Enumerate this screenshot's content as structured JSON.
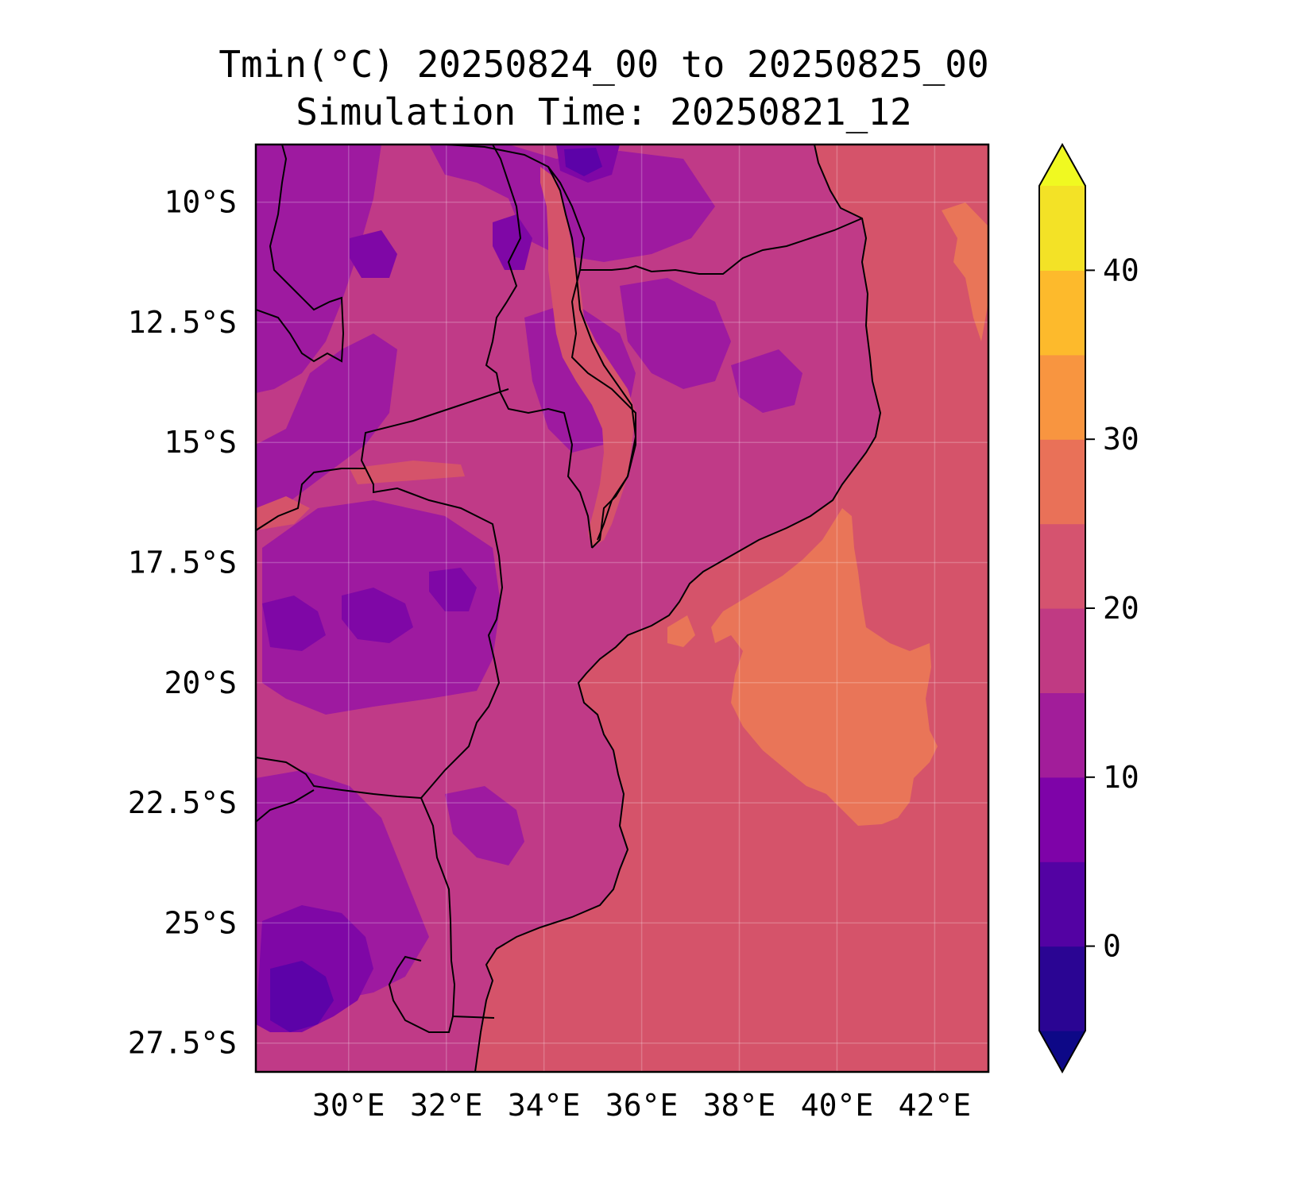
{
  "title": "Tmin(°C) 20250824_00 to 20250825_00",
  "subtitle": "Simulation Time: 20250821_12",
  "map": {
    "region": "Mozambique / south-east Africa",
    "lat_ticks": [
      "10°S",
      "12.5°S",
      "15°S",
      "17.5°S",
      "20°S",
      "22.5°S",
      "25°S",
      "27.5°S"
    ],
    "lon_ticks": [
      "30°E",
      "32°E",
      "34°E",
      "36°E",
      "38°E",
      "40°E",
      "42°E"
    ],
    "gridlines": true,
    "field_colors": {
      "sea": "#d5536a",
      "sea_warm": "#e97558",
      "land": "#c03a87",
      "land_cool": "#9e1aa0",
      "land_cold": "#7f07a6",
      "land_coldest": "#5c02a8",
      "lake_shore": "#d5536a"
    }
  },
  "colorbar": {
    "ticks": [
      "0",
      "10",
      "20",
      "30",
      "40"
    ],
    "min": -5,
    "max": 45,
    "step": 5,
    "extend": "both",
    "colors": [
      "#0d0887",
      "#2a0593",
      "#5302a3",
      "#7e03a8",
      "#a21d9a",
      "#c03a83",
      "#d5536f",
      "#e97158",
      "#f89540",
      "#fdba2c",
      "#f3e226",
      "#f0f921"
    ]
  }
}
